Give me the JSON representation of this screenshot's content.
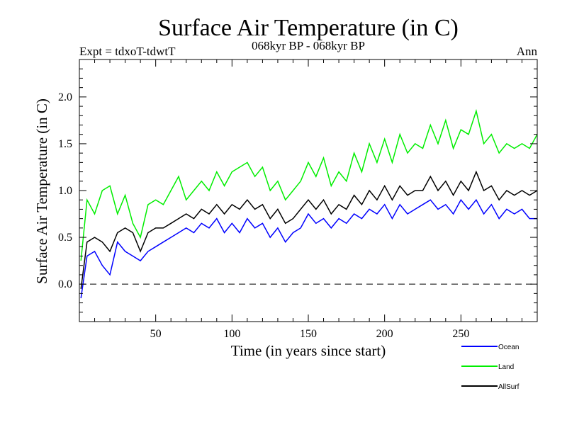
{
  "chart_data": {
    "type": "line",
    "title": "Surface Air Temperature (in C)",
    "subtitle_left": "Expt = tdxoT-tdwtT",
    "subtitle_center": "068kyr BP - 068kyr BP",
    "subtitle_right": "Ann",
    "xlabel": "Time (in years since start)",
    "ylabel": "Surface Air Temperature (in C)",
    "xlim": [
      0,
      300
    ],
    "ylim": [
      -0.4,
      2.4
    ],
    "xticks": [
      50,
      100,
      150,
      200,
      250
    ],
    "xtick_labels": [
      "50",
      "100",
      "150",
      "200",
      "250"
    ],
    "yticks": [
      0.0,
      0.5,
      1.0,
      1.5,
      2.0
    ],
    "ytick_labels": [
      "0.0",
      "0.5",
      "1.0",
      "1.5",
      "2.0"
    ],
    "reference_line": {
      "y": 0.0,
      "style": "dashed"
    },
    "legend_position": "bottom-right",
    "x": [
      1,
      5,
      10,
      15,
      20,
      25,
      30,
      35,
      40,
      45,
      50,
      55,
      60,
      65,
      70,
      75,
      80,
      85,
      90,
      95,
      100,
      105,
      110,
      115,
      120,
      125,
      130,
      135,
      140,
      145,
      150,
      155,
      160,
      165,
      170,
      175,
      180,
      185,
      190,
      195,
      200,
      205,
      210,
      215,
      220,
      225,
      230,
      235,
      240,
      245,
      250,
      255,
      260,
      265,
      270,
      275,
      280,
      285,
      290,
      295,
      300
    ],
    "series": [
      {
        "name": "Ocean",
        "color": "#0000ff",
        "values": [
          -0.15,
          0.3,
          0.35,
          0.2,
          0.1,
          0.45,
          0.35,
          0.3,
          0.25,
          0.35,
          0.4,
          0.45,
          0.5,
          0.55,
          0.6,
          0.55,
          0.65,
          0.6,
          0.7,
          0.55,
          0.65,
          0.55,
          0.7,
          0.6,
          0.65,
          0.5,
          0.6,
          0.45,
          0.55,
          0.6,
          0.75,
          0.65,
          0.7,
          0.6,
          0.7,
          0.65,
          0.75,
          0.7,
          0.8,
          0.75,
          0.85,
          0.7,
          0.85,
          0.75,
          0.8,
          0.85,
          0.9,
          0.8,
          0.85,
          0.75,
          0.9,
          0.8,
          0.9,
          0.75,
          0.85,
          0.7,
          0.8,
          0.75,
          0.8,
          0.7,
          0.7
        ]
      },
      {
        "name": "Land",
        "color": "#00ee00",
        "values": [
          0.25,
          0.9,
          0.75,
          1.0,
          1.05,
          0.75,
          0.95,
          0.65,
          0.5,
          0.85,
          0.9,
          0.85,
          1.0,
          1.15,
          0.9,
          1.0,
          1.1,
          1.0,
          1.2,
          1.05,
          1.2,
          1.25,
          1.3,
          1.15,
          1.25,
          1.0,
          1.1,
          0.9,
          1.0,
          1.1,
          1.3,
          1.15,
          1.35,
          1.05,
          1.2,
          1.1,
          1.4,
          1.2,
          1.5,
          1.3,
          1.55,
          1.3,
          1.6,
          1.4,
          1.5,
          1.45,
          1.7,
          1.5,
          1.75,
          1.45,
          1.65,
          1.6,
          1.85,
          1.5,
          1.6,
          1.4,
          1.5,
          1.45,
          1.5,
          1.45,
          1.6
        ]
      },
      {
        "name": "AllSurf",
        "color": "#000000",
        "values": [
          -0.05,
          0.45,
          0.5,
          0.45,
          0.35,
          0.55,
          0.6,
          0.55,
          0.35,
          0.55,
          0.6,
          0.6,
          0.65,
          0.7,
          0.75,
          0.7,
          0.8,
          0.75,
          0.85,
          0.75,
          0.85,
          0.8,
          0.9,
          0.8,
          0.85,
          0.7,
          0.8,
          0.65,
          0.7,
          0.8,
          0.9,
          0.8,
          0.9,
          0.75,
          0.85,
          0.8,
          0.95,
          0.85,
          1.0,
          0.9,
          1.05,
          0.9,
          1.05,
          0.95,
          1.0,
          1.0,
          1.15,
          1.0,
          1.1,
          0.95,
          1.1,
          1.0,
          1.2,
          1.0,
          1.05,
          0.9,
          1.0,
          0.95,
          1.0,
          0.95,
          1.0
        ]
      }
    ]
  }
}
